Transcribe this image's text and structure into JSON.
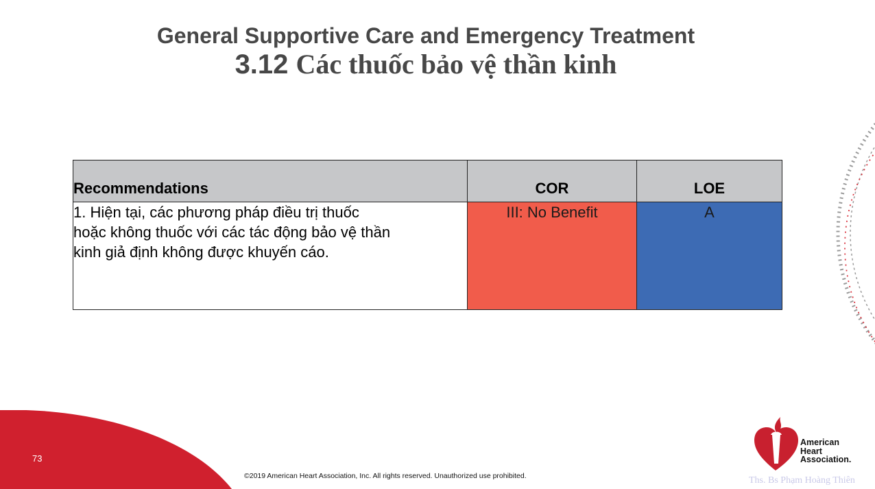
{
  "slide": {
    "title_line1": "General Supportive Care and Emergency Treatment",
    "title_number": "3.12",
    "title_text": "Các thuốc bảo vệ thần kinh",
    "page_number": "73",
    "copyright": "©2019 American Heart Association, Inc. All rights reserved. Unauthorized use prohibited.",
    "watermark": "Ths. Bs Phạm Hoàng Thiên"
  },
  "table": {
    "headers": {
      "recommendations": "Recommendations",
      "cor": "COR",
      "loe": "LOE"
    },
    "rows": [
      {
        "recommendation": "1. Hiện tại, các phương pháp điều trị thuốc hoặc không thuốc với các tác động bảo vệ thần kinh giả định không được khuyến cáo.",
        "cor": "III: No Benefit",
        "loe": "A"
      }
    ]
  },
  "logo": {
    "line1": "American",
    "line2": "Heart",
    "line3": "Association."
  },
  "colors": {
    "cor_red": "#f15c4b",
    "loe_blue": "#3d6bb4",
    "header_gray": "#c6c7c9",
    "aha_red": "#c8202f"
  }
}
